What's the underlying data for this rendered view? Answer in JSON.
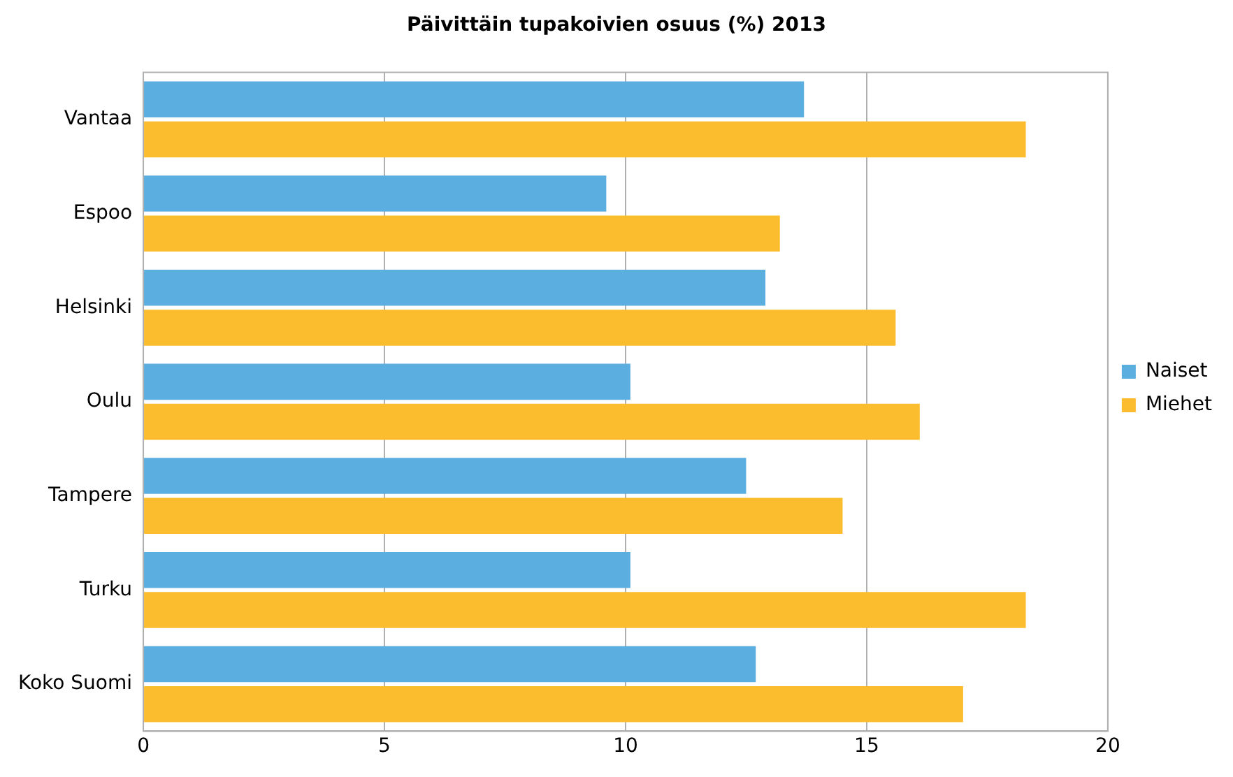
{
  "chart_data": {
    "type": "bar",
    "orientation": "horizontal",
    "title": "Päivittäin tupakoivien osuus (%) 2013",
    "categories": [
      "Vantaa",
      "Espoo",
      "Helsinki",
      "Oulu",
      "Tampere",
      "Turku",
      "Koko Suomi"
    ],
    "series": [
      {
        "name": "Naiset",
        "color": "#5baee0",
        "values": [
          13.7,
          9.6,
          12.9,
          10.1,
          12.5,
          10.1,
          12.7
        ]
      },
      {
        "name": "Miehet",
        "color": "#fbbd2e",
        "values": [
          18.3,
          13.2,
          15.6,
          16.1,
          14.5,
          18.3,
          17.0
        ]
      }
    ],
    "xlim": [
      0,
      20
    ],
    "xticks": [
      0,
      5,
      10,
      15,
      20
    ],
    "grid": "x",
    "legend": "right"
  }
}
